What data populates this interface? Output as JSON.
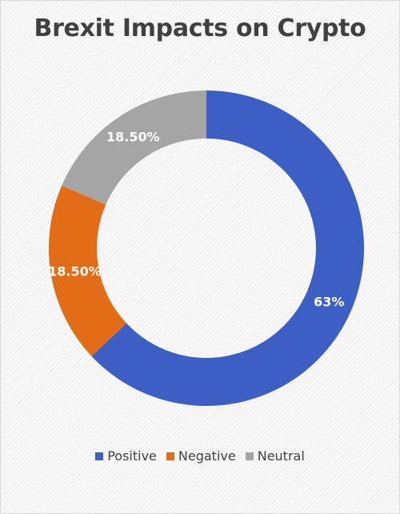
{
  "chart_data": {
    "type": "pie",
    "style": "donut",
    "title": "Brexit Impacts on Crypto",
    "categories": [
      "Positive",
      "Negative",
      "Neutral"
    ],
    "values": [
      63,
      18.5,
      18.5
    ],
    "labels": [
      "63%",
      "18.50%",
      "18.50%"
    ],
    "colors": [
      "#3b5fc5",
      "#e36c16",
      "#a5a5a5"
    ],
    "legend_position": "bottom"
  }
}
